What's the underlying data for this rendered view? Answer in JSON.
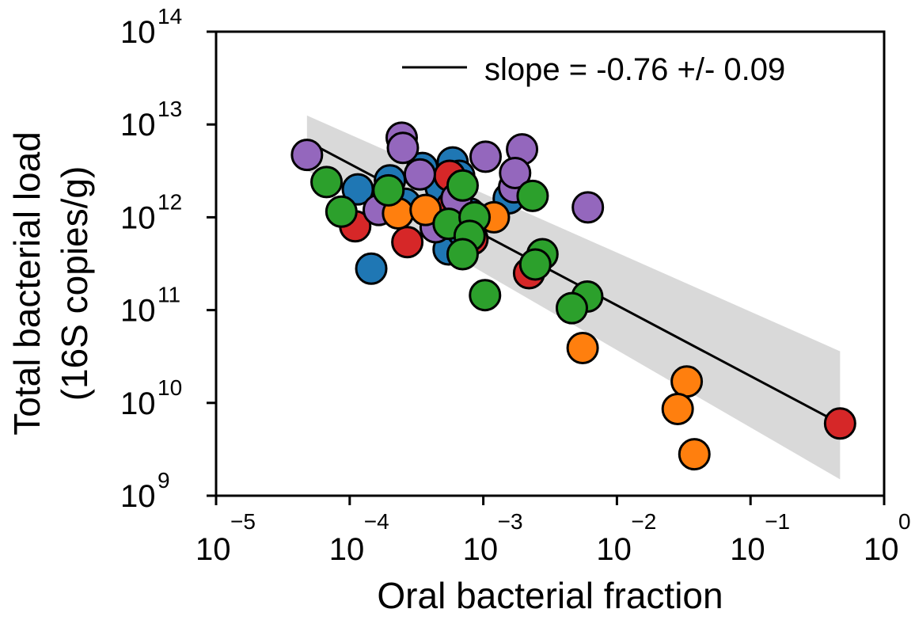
{
  "chart_data": {
    "type": "scatter",
    "title": "",
    "xlabel": "Oral bacterial fraction",
    "ylabel_lines": [
      "Total bacterial load",
      "(16S copies/g)"
    ],
    "xscale": "log",
    "yscale": "log",
    "xlim": [
      1e-05,
      1
    ],
    "ylim": [
      1000000000.0,
      100000000000000.0
    ],
    "x_ticks": [
      {
        "base": "10",
        "exp": "−5"
      },
      {
        "base": "10",
        "exp": "−4"
      },
      {
        "base": "10",
        "exp": "−3"
      },
      {
        "base": "10",
        "exp": "−2"
      },
      {
        "base": "10",
        "exp": "−1"
      },
      {
        "base": "10",
        "exp": "0"
      }
    ],
    "y_ticks": [
      {
        "base": "10",
        "exp": "9"
      },
      {
        "base": "10",
        "exp": "10"
      },
      {
        "base": "10",
        "exp": "11"
      },
      {
        "base": "10",
        "exp": "12"
      },
      {
        "base": "10",
        "exp": "13"
      },
      {
        "base": "10",
        "exp": "14"
      }
    ],
    "grid": false,
    "legend": {
      "placement": "top-right",
      "label": "slope = -0.76 +/- 0.09"
    },
    "fit": {
      "slope": -0.76,
      "slope_err": 0.09,
      "x_range": [
        4.79e-05,
        0.468
      ],
      "y_start": 6600000000000.0,
      "y_end": 6000000000.0,
      "band": {
        "upper_start": 12500000000000.0,
        "upper_end": 36000000000.0,
        "lower_start": 3200000000000.0,
        "lower_end": 1500000000.0
      },
      "line_color": "#000000",
      "band_color": "#d9d9d9"
    },
    "series": [
      {
        "color": "#1f77b4",
        "points": [
          [
            0.000115,
            2000000000000.0
          ],
          [
            0.0002,
            2500000000000.0
          ],
          [
            0.00026,
            1400000000000.0
          ],
          [
            0.00035,
            3400000000000.0
          ],
          [
            0.00059,
            3900000000000.0
          ],
          [
            0.00048,
            2100000000000.0
          ],
          [
            0.00055,
            450000000000.0
          ],
          [
            0.0007,
            700000000000.0
          ],
          [
            0.00079,
            1100000000000.0
          ],
          [
            0.00155,
            1600000000000.0
          ],
          [
            0.00066,
            2800000000000.0
          ],
          [
            0.000145,
            280000000000.0
          ]
        ]
      },
      {
        "color": "#d62728",
        "points": [
          [
            0.00011,
            800000000000.0
          ],
          [
            0.00027,
            540000000000.0
          ],
          [
            0.00056,
            2800000000000.0
          ],
          [
            0.00058,
            1300000000000.0
          ],
          [
            0.00083,
            580000000000.0
          ],
          [
            0.0022,
            250000000000.0
          ],
          [
            0.468,
            6000000000.0
          ]
        ]
      },
      {
        "color": "#9467bd",
        "points": [
          [
            4.79e-05,
            4700000000000.0
          ],
          [
            0.000245,
            7200000000000.0
          ],
          [
            0.00025,
            5600000000000.0
          ],
          [
            0.000335,
            2900000000000.0
          ],
          [
            0.00104,
            4500000000000.0
          ],
          [
            0.00195,
            5400000000000.0
          ],
          [
            0.0017,
            2100000000000.0
          ],
          [
            0.00173,
            3000000000000.0
          ],
          [
            0.00606,
            1280000000000.0
          ],
          [
            0.00044,
            780000000000.0
          ],
          [
            0.000165,
            1200000000000.0
          ],
          [
            0.00063,
            1600000000000.0
          ]
        ]
      },
      {
        "color": "#ff7f0e",
        "points": [
          [
            0.00023,
            1100000000000.0
          ],
          [
            0.00037,
            1200000000000.0
          ],
          [
            0.0012,
            1000000000000.0
          ],
          [
            0.00554,
            39000000000.0
          ],
          [
            0.0333,
            17000000000.0
          ],
          [
            0.0285,
            8600000000.0
          ],
          [
            0.038,
            2800000000.0
          ]
        ]
      },
      {
        "color": "#2ca02c",
        "points": [
          [
            6.71e-05,
            2400000000000.0
          ],
          [
            8.67e-05,
            1150000000000.0
          ],
          [
            0.000195,
            1950000000000.0
          ],
          [
            0.00055,
            850000000000.0
          ],
          [
            0.0007,
            2200000000000.0
          ],
          [
            0.00086,
            1000000000000.0
          ],
          [
            0.00079,
            630000000000.0
          ],
          [
            0.0007,
            400000000000.0
          ],
          [
            0.00103,
            145000000000.0
          ],
          [
            0.00234,
            1700000000000.0
          ],
          [
            0.00277,
            400000000000.0
          ],
          [
            0.00245,
            310000000000.0
          ],
          [
            0.006,
            140000000000.0
          ],
          [
            0.0046,
            105000000000.0
          ]
        ]
      }
    ]
  }
}
